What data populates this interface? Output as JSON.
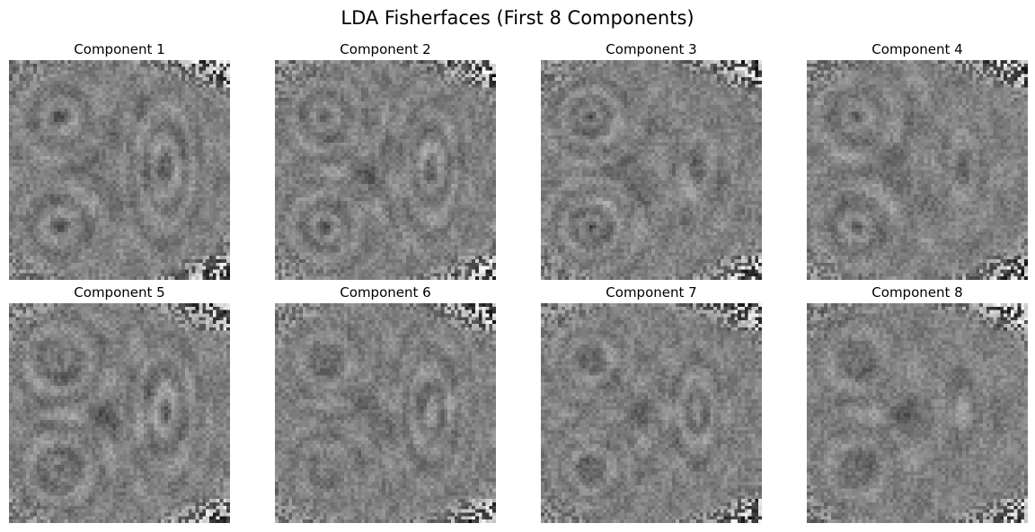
{
  "figure": {
    "title": "LDA Fisherfaces (First 8 Components)"
  },
  "panels": [
    {
      "title": "Component 1"
    },
    {
      "title": "Component 2"
    },
    {
      "title": "Component 3"
    },
    {
      "title": "Component 4"
    },
    {
      "title": "Component 5"
    },
    {
      "title": "Component 6"
    },
    {
      "title": "Component 7"
    },
    {
      "title": "Component 8"
    }
  ],
  "image_style": {
    "colormap": "gray",
    "content": "grayscale face-shaped eigenface patterns, noisy at corners"
  }
}
